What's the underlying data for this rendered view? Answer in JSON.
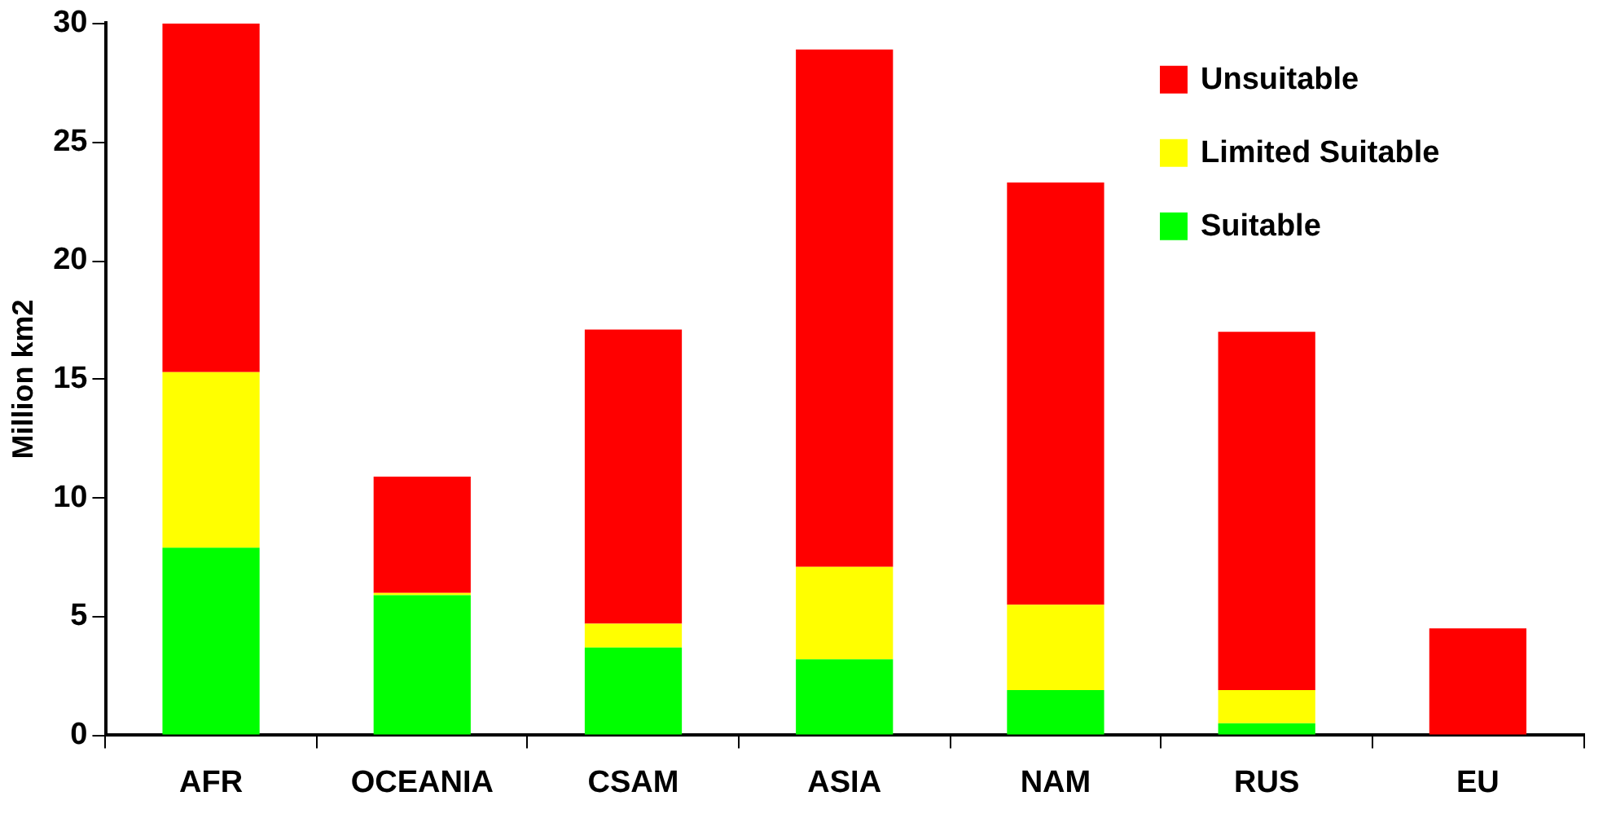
{
  "chart_data": {
    "type": "bar",
    "stacked": true,
    "ylabel": "Million km2",
    "categories": [
      "AFR",
      "OCEANIA",
      "CSAM",
      "ASIA",
      "NAM",
      "RUS",
      "EU"
    ],
    "series": [
      {
        "name": "Suitable",
        "color": "#00ff00",
        "values": [
          7.9,
          5.9,
          3.7,
          3.2,
          1.9,
          0.5,
          0
        ]
      },
      {
        "name": "Limited Suitable",
        "color": "#ffff00",
        "values": [
          7.4,
          0.1,
          1.0,
          3.9,
          3.6,
          1.4,
          0
        ]
      },
      {
        "name": "Unsuitable",
        "color": "#ff0000",
        "values": [
          14.7,
          4.9,
          12.4,
          21.8,
          17.8,
          15.1,
          4.5
        ]
      }
    ],
    "ylim": [
      0,
      30
    ],
    "yticks": [
      0,
      5,
      10,
      15,
      20,
      25,
      30
    ],
    "grid": false,
    "legend": "top right"
  }
}
